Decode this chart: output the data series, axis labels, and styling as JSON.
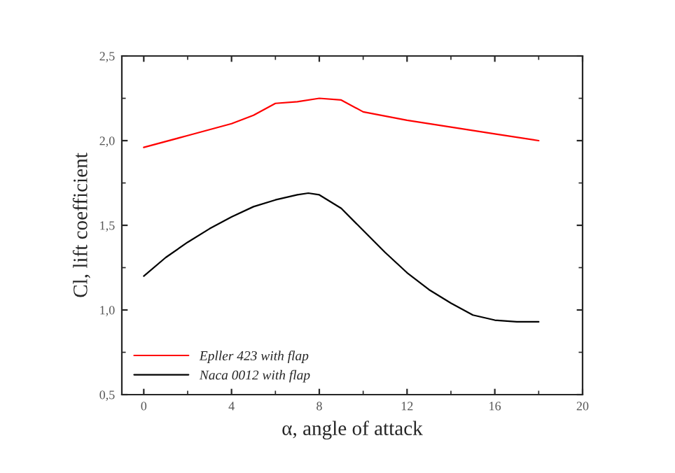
{
  "chart_data": {
    "type": "line",
    "xlabel": "α, angle of attack",
    "ylabel": "Cl, lift coefficient",
    "xlim": [
      -1,
      20
    ],
    "ylim": [
      0.5,
      2.5
    ],
    "xticks": [
      0,
      4,
      8,
      12,
      16,
      20
    ],
    "yticks": [
      {
        "value": 0.5,
        "label": "0,5"
      },
      {
        "value": 1.0,
        "label": "1,0"
      },
      {
        "value": 1.5,
        "label": "1,5"
      },
      {
        "value": 2.0,
        "label": "2,0"
      },
      {
        "value": 2.5,
        "label": "2,5"
      }
    ],
    "grid": false,
    "legend": "bottom left",
    "line_style": "solid",
    "marker": "none",
    "series": [
      {
        "name": "Epller 423 with flap",
        "color": "#ff0000",
        "x": [
          0,
          2,
          4,
          5,
          6,
          7,
          8,
          9,
          10,
          12,
          14,
          16,
          18
        ],
        "values": [
          1.96,
          2.03,
          2.1,
          2.15,
          2.22,
          2.23,
          2.25,
          2.24,
          2.17,
          2.12,
          2.08,
          2.04,
          2.0
        ]
      },
      {
        "name": "Naca 0012 with flap",
        "color": "#000000",
        "x": [
          0,
          1,
          2,
          3,
          4,
          5,
          6,
          7,
          7.5,
          8,
          9,
          10,
          11,
          12,
          13,
          14,
          15,
          16,
          17,
          18
        ],
        "values": [
          1.2,
          1.31,
          1.4,
          1.48,
          1.55,
          1.61,
          1.65,
          1.68,
          1.69,
          1.68,
          1.6,
          1.47,
          1.34,
          1.22,
          1.12,
          1.04,
          0.97,
          0.94,
          0.93,
          0.93
        ]
      }
    ]
  }
}
